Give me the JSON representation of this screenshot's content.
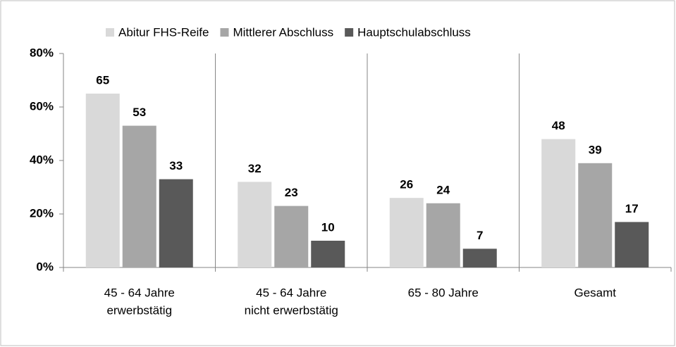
{
  "chart_data": {
    "type": "bar",
    "categories": [
      [
        "45 - 64 Jahre",
        "erwerbstätig"
      ],
      [
        "45 - 64 Jahre",
        "nicht erwerbstätig"
      ],
      [
        "65 - 80 Jahre"
      ],
      [
        "Gesamt"
      ]
    ],
    "series": [
      {
        "name": "Abitur FHS-Reife",
        "color": "#d9d9d9",
        "values": [
          65,
          32,
          26,
          48
        ]
      },
      {
        "name": "Mittlerer Abschluss",
        "color": "#a6a6a6",
        "values": [
          53,
          23,
          24,
          39
        ]
      },
      {
        "name": "Hauptschulabschluss",
        "color": "#595959",
        "values": [
          33,
          10,
          7,
          17
        ]
      }
    ],
    "ylim": [
      0,
      80
    ],
    "yticks": [
      {
        "value": 0,
        "label": "0%"
      },
      {
        "value": 20,
        "label": "20%"
      },
      {
        "value": 40,
        "label": "40%"
      },
      {
        "value": 60,
        "label": "60%"
      },
      {
        "value": 80,
        "label": "80%"
      }
    ],
    "grid": true,
    "legend": "top"
  }
}
